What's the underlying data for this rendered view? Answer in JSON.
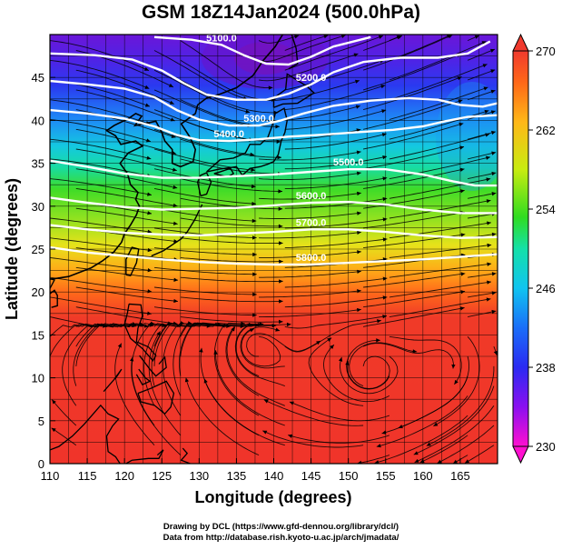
{
  "title": "GSM 18Z14Jan2024 (500.0hPa)",
  "credits": {
    "line1": "Drawing by DCL (https://www.gfd-dennou.org/library/dcl/)",
    "line2": "Data from http://database.rish.kyoto-u.ac.jp/arch/jmadata/"
  },
  "chart_data": {
    "type": "heatmap",
    "title": "GSM 18Z14Jan2024 (500.0hPa)",
    "xlabel": "Longitude (degrees)",
    "ylabel": "Latitude  (degrees)",
    "xlim": [
      110,
      170
    ],
    "ylim": [
      0,
      50
    ],
    "x_ticks": [
      "110",
      "115",
      "120",
      "125",
      "130",
      "135",
      "140",
      "145",
      "150",
      "155",
      "160",
      "165"
    ],
    "y_ticks": [
      "0",
      "5",
      "10",
      "15",
      "20",
      "25",
      "30",
      "35",
      "40",
      "45"
    ],
    "grid": true,
    "colorbar": {
      "range": [
        230,
        270
      ],
      "ticks": [
        "230",
        "238",
        "246",
        "254",
        "262",
        "270"
      ],
      "colors": [
        "#ff00cc",
        "#8a00ff",
        "#1818ff",
        "#00aaff",
        "#00ffcc",
        "#22e000",
        "#c8ff00",
        "#ffcc00",
        "#ff7a00",
        "#ff3a2a"
      ]
    },
    "contours": [
      {
        "label": "5100.0",
        "points": [
          [
            124,
            49.7
          ],
          [
            129,
            49.4
          ],
          [
            133,
            48.8
          ],
          [
            136,
            47.6
          ],
          [
            139,
            46.6
          ],
          [
            142,
            46.5
          ],
          [
            145,
            47.4
          ],
          [
            148,
            48.6
          ],
          [
            153,
            49.7
          ]
        ]
      },
      {
        "label": "5200.0",
        "points": [
          [
            110,
            47.8
          ],
          [
            116,
            47.6
          ],
          [
            121,
            47.1
          ],
          [
            125,
            45.8
          ],
          [
            128,
            44.3
          ],
          [
            131,
            43.0
          ],
          [
            135,
            42.4
          ],
          [
            139,
            42.4
          ],
          [
            142,
            43.1
          ],
          [
            145,
            44.2
          ],
          [
            148,
            45.6
          ],
          [
            152,
            46.8
          ],
          [
            157,
            47.3
          ],
          [
            162,
            47.3
          ],
          [
            166,
            47.8
          ],
          [
            169,
            49.2
          ]
        ]
      },
      {
        "label": "5300.0",
        "points": [
          [
            110,
            44.6
          ],
          [
            115,
            44.2
          ],
          [
            120,
            43.7
          ],
          [
            124,
            42.7
          ],
          [
            127,
            41.2
          ],
          [
            130,
            40.1
          ],
          [
            134,
            39.4
          ],
          [
            138,
            39.4
          ],
          [
            141,
            40.0
          ],
          [
            144,
            40.8
          ],
          [
            148,
            41.7
          ],
          [
            153,
            42.3
          ],
          [
            158,
            42.6
          ],
          [
            162,
            42.4
          ],
          [
            165,
            41.8
          ],
          [
            168,
            41.6
          ],
          [
            170,
            42.0
          ]
        ]
      },
      {
        "label": "5400.0",
        "points": [
          [
            110,
            41.2
          ],
          [
            115,
            40.8
          ],
          [
            120,
            40.2
          ],
          [
            124,
            39.3
          ],
          [
            127,
            38.3
          ],
          [
            130,
            37.7
          ],
          [
            134,
            37.6
          ],
          [
            138,
            37.8
          ],
          [
            142,
            38.1
          ],
          [
            146,
            38.3
          ],
          [
            151,
            38.6
          ],
          [
            156,
            38.9
          ],
          [
            160,
            39.3
          ],
          [
            163,
            39.9
          ],
          [
            166,
            40.4
          ],
          [
            170,
            40.6
          ]
        ]
      },
      {
        "label": "5500.0",
        "points": [
          [
            110,
            35.3
          ],
          [
            115,
            34.6
          ],
          [
            120,
            33.8
          ],
          [
            125,
            33.3
          ],
          [
            130,
            33.3
          ],
          [
            135,
            33.5
          ],
          [
            140,
            33.7
          ],
          [
            145,
            34.0
          ],
          [
            150,
            34.3
          ],
          [
            155,
            34.3
          ],
          [
            160,
            33.7
          ],
          [
            164,
            32.9
          ],
          [
            167,
            32.4
          ],
          [
            170,
            32.4
          ]
        ]
      },
      {
        "label": "5600.0",
        "points": [
          [
            110,
            31.0
          ],
          [
            115,
            30.4
          ],
          [
            120,
            29.9
          ],
          [
            125,
            29.6
          ],
          [
            130,
            29.7
          ],
          [
            135,
            29.8
          ],
          [
            140,
            30.1
          ],
          [
            145,
            30.4
          ],
          [
            150,
            30.5
          ],
          [
            155,
            30.2
          ],
          [
            160,
            29.6
          ],
          [
            165,
            29.2
          ],
          [
            170,
            29.2
          ]
        ]
      },
      {
        "label": "5700.0",
        "points": [
          [
            110,
            27.8
          ],
          [
            115,
            27.3
          ],
          [
            120,
            26.9
          ],
          [
            125,
            26.7
          ],
          [
            130,
            26.6
          ],
          [
            135,
            26.8
          ],
          [
            140,
            27.0
          ],
          [
            145,
            27.3
          ],
          [
            150,
            27.3
          ],
          [
            155,
            27.0
          ],
          [
            160,
            26.6
          ],
          [
            165,
            26.3
          ],
          [
            170,
            26.4
          ]
        ]
      },
      {
        "label": "5800.0",
        "points": [
          [
            110,
            25.2
          ],
          [
            115,
            24.6
          ],
          [
            120,
            24.2
          ],
          [
            125,
            23.8
          ],
          [
            130,
            23.5
          ],
          [
            135,
            23.3
          ],
          [
            140,
            23.2
          ],
          [
            145,
            23.2
          ],
          [
            150,
            23.4
          ],
          [
            155,
            23.6
          ],
          [
            160,
            23.8
          ],
          [
            165,
            24.1
          ],
          [
            170,
            24.4
          ]
        ]
      }
    ]
  }
}
